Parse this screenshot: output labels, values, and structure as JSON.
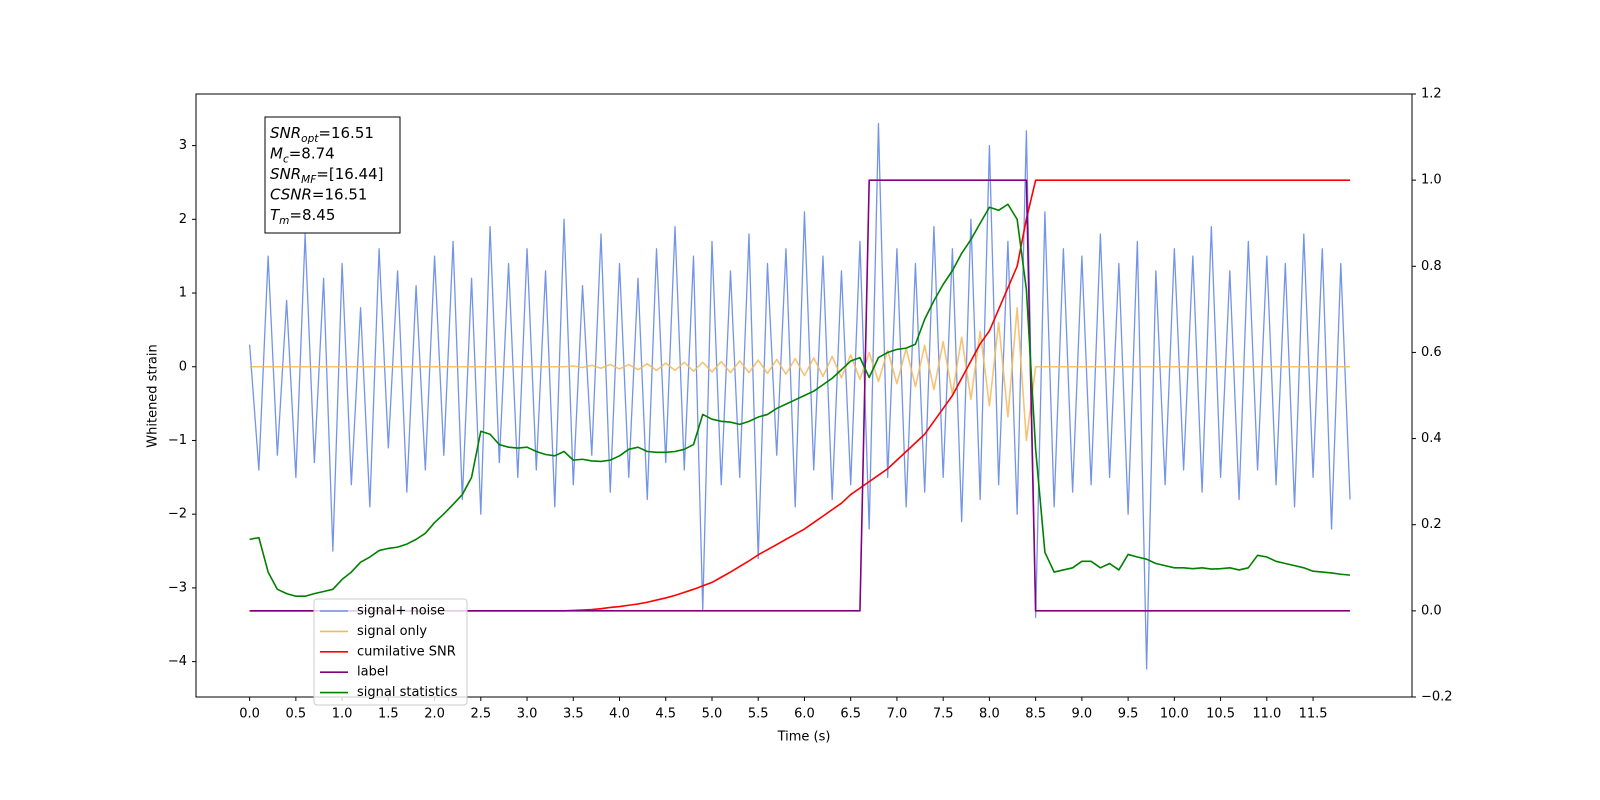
{
  "chart_data": {
    "type": "line",
    "xlabel": "Time (s)",
    "ylabel": "Whitened strain",
    "xlim": [
      -0.58,
      12.57
    ],
    "ylim": [
      -4.48,
      3.7
    ],
    "y2lim": [
      -0.2,
      1.2
    ],
    "xticks": [
      {
        "value": 0,
        "label": "0.0"
      },
      0.5,
      {
        "value": 1,
        "label": "1.0"
      },
      1.5,
      {
        "value": 2,
        "label": "2.0"
      },
      2.5,
      {
        "value": 3,
        "label": "3.0"
      },
      3.5,
      {
        "value": 4,
        "label": "4.0"
      },
      4.5,
      {
        "value": 5,
        "label": "5.0"
      },
      5.5,
      {
        "value": 6,
        "label": "6.0"
      },
      6.5,
      {
        "value": 7,
        "label": "7.0"
      },
      7.5,
      {
        "value": 8,
        "label": "8.0"
      },
      8.5,
      {
        "value": 9,
        "label": "9.0"
      },
      9.5,
      {
        "value": 10,
        "label": "10.0"
      },
      10.5,
      {
        "value": 11,
        "label": "11.0"
      },
      11.5
    ],
    "yticks": [
      {
        "value": -4,
        "label": "−4"
      },
      {
        "value": -3,
        "label": "−3"
      },
      {
        "value": -2,
        "label": "−2"
      },
      {
        "value": -1,
        "label": "−1"
      },
      0,
      1,
      2,
      3
    ],
    "y2ticks": [
      {
        "value": -0.2,
        "label": "−0.2"
      },
      {
        "value": 0,
        "label": "0.0"
      },
      0.2,
      0.4,
      0.6,
      0.8,
      {
        "value": 1,
        "label": "1.0"
      },
      1.2
    ],
    "annotations": [
      {
        "symbol": "SNR",
        "sub": "opt",
        "text": "=16.51"
      },
      {
        "symbol": "M",
        "sub": "c",
        "text": "=8.74"
      },
      {
        "symbol": "SNR",
        "sub": "MF",
        "text": "=[16.44]"
      },
      {
        "symbol": "CSNR",
        "sub": "",
        "text": "=16.51"
      },
      {
        "symbol": "T",
        "sub": "m",
        "text": "=8.45"
      }
    ],
    "x": [
      0,
      0.1,
      0.2,
      0.3,
      0.4,
      0.5,
      0.6,
      0.7,
      0.8,
      0.9,
      1,
      1.1,
      1.2,
      1.3,
      1.4,
      1.5,
      1.6,
      1.7,
      1.8,
      1.9,
      2,
      2.1,
      2.2,
      2.3,
      2.4,
      2.5,
      2.6,
      2.7,
      2.8,
      2.9,
      3,
      3.1,
      3.2,
      3.3,
      3.4,
      3.5,
      3.6,
      3.7,
      3.8,
      3.9,
      4,
      4.1,
      4.2,
      4.3,
      4.4,
      4.5,
      4.6,
      4.7,
      4.8,
      4.9,
      5,
      5.1,
      5.2,
      5.3,
      5.4,
      5.5,
      5.6,
      5.7,
      5.8,
      5.9,
      6,
      6.1,
      6.2,
      6.3,
      6.4,
      6.5,
      6.6,
      6.7,
      6.8,
      6.9,
      7,
      7.1,
      7.2,
      7.3,
      7.4,
      7.5,
      7.6,
      7.7,
      7.8,
      7.9,
      8,
      8.1,
      8.2,
      8.3,
      8.4,
      8.5,
      8.6,
      8.7,
      8.8,
      8.9,
      9,
      9.1,
      9.2,
      9.3,
      9.4,
      9.5,
      9.6,
      9.7,
      9.8,
      9.9,
      10,
      10.1,
      10.2,
      10.3,
      10.4,
      10.5,
      10.6,
      10.7,
      10.8,
      10.9,
      11,
      11.1,
      11.2,
      11.3,
      11.4,
      11.5,
      11.6,
      11.7,
      11.8,
      11.9
    ],
    "series": [
      {
        "name": "signal+ noise",
        "color": "#7394e8",
        "axis": "y",
        "values": [
          0.3,
          -1.4,
          1.5,
          -1.2,
          0.9,
          -1.5,
          1.8,
          -1.3,
          1.2,
          -2.5,
          1.4,
          -1.6,
          0.8,
          -1.9,
          1.6,
          -1.1,
          1.3,
          -1.7,
          1.1,
          -1.4,
          1.5,
          -1.2,
          1.7,
          -1.8,
          1.2,
          -2.0,
          1.9,
          -1.3,
          1.4,
          -1.5,
          1.6,
          -1.4,
          1.3,
          -1.9,
          2.0,
          -1.6,
          1.1,
          -1.2,
          1.8,
          -1.7,
          1.4,
          -1.5,
          1.2,
          -1.8,
          1.6,
          -1.3,
          1.9,
          -1.4,
          1.5,
          -3.3,
          1.7,
          -1.6,
          1.3,
          -1.5,
          1.8,
          -2.6,
          1.4,
          -1.2,
          1.6,
          -1.9,
          2.1,
          -1.4,
          1.5,
          -1.8,
          1.3,
          -1.6,
          1.7,
          -2.2,
          3.3,
          -1.5,
          1.6,
          -1.9,
          1.4,
          -1.7,
          1.9,
          -1.5,
          1.6,
          -2.1,
          2.0,
          -1.8,
          3.0,
          -1.6,
          1.7,
          -2.0,
          3.2,
          -3.4,
          2.1,
          -1.9,
          1.6,
          -1.7,
          1.5,
          -1.6,
          1.8,
          -1.5,
          1.4,
          -2.0,
          1.7,
          -4.1,
          1.3,
          -1.6,
          1.6,
          -1.4,
          1.5,
          -1.7,
          1.9,
          -1.5,
          1.3,
          -1.8,
          1.7,
          -1.4,
          1.5,
          -1.6,
          1.4,
          -1.9,
          1.8,
          -1.5,
          1.6,
          -2.2,
          1.4,
          -1.8
        ]
      },
      {
        "name": "signal only",
        "color": "#f5b85c",
        "axis": "y",
        "values": [
          0,
          0,
          0,
          0,
          0,
          0,
          0,
          0,
          0,
          0,
          0,
          0,
          0,
          0,
          0,
          0,
          0,
          0,
          0,
          0,
          0,
          0,
          0,
          0,
          0,
          0,
          0,
          0,
          0,
          0,
          0,
          0,
          0,
          0,
          0,
          0.01,
          -0.01,
          0.02,
          -0.02,
          0.03,
          -0.03,
          0.03,
          -0.04,
          0.04,
          -0.05,
          0.05,
          -0.05,
          0.06,
          -0.06,
          0.06,
          -0.07,
          0.07,
          -0.08,
          0.08,
          -0.08,
          0.09,
          -0.09,
          0.1,
          -0.1,
          0.11,
          -0.12,
          0.12,
          -0.13,
          0.14,
          -0.15,
          0.16,
          -0.17,
          0.19,
          -0.2,
          0.22,
          -0.23,
          0.25,
          -0.27,
          0.29,
          -0.31,
          0.34,
          -0.37,
          0.4,
          -0.44,
          0.48,
          -0.53,
          0.6,
          -0.68,
          0.8,
          -1.0,
          0,
          0,
          0,
          0,
          0,
          0,
          0,
          0,
          0,
          0,
          0,
          0,
          0,
          0,
          0,
          0,
          0,
          0,
          0,
          0,
          0,
          0,
          0,
          0,
          0,
          0,
          0,
          0,
          0,
          0,
          0,
          0,
          0,
          0,
          0
        ]
      },
      {
        "name": "cumilative SNR",
        "color": "#ff0000",
        "axis": "y2",
        "values": [
          0,
          0,
          0,
          0,
          0,
          0,
          0,
          0,
          0,
          0,
          0,
          0,
          0,
          0,
          0,
          0,
          0,
          0,
          0,
          0,
          0,
          0,
          0,
          0,
          0,
          0,
          0,
          0,
          0,
          0,
          0,
          0,
          0,
          0,
          0,
          0.001,
          0.002,
          0.003,
          0.005,
          0.008,
          0.01,
          0.013,
          0.016,
          0.02,
          0.025,
          0.03,
          0.036,
          0.043,
          0.05,
          0.058,
          0.066,
          0.078,
          0.09,
          0.103,
          0.116,
          0.13,
          0.142,
          0.154,
          0.166,
          0.178,
          0.19,
          0.205,
          0.22,
          0.235,
          0.25,
          0.27,
          0.285,
          0.3,
          0.315,
          0.33,
          0.35,
          0.37,
          0.39,
          0.41,
          0.44,
          0.47,
          0.5,
          0.54,
          0.58,
          0.62,
          0.65,
          0.7,
          0.75,
          0.8,
          0.91,
          1,
          1,
          1,
          1,
          1,
          1,
          1,
          1,
          1,
          1,
          1,
          1,
          1,
          1,
          1,
          1,
          1,
          1,
          1,
          1,
          1,
          1,
          1,
          1,
          1,
          1,
          1,
          1,
          1,
          1,
          1,
          1,
          1,
          1,
          1
        ]
      },
      {
        "name": "label",
        "color": "#800080",
        "axis": "y2",
        "values": [
          0,
          0,
          0,
          0,
          0,
          0,
          0,
          0,
          0,
          0,
          0,
          0,
          0,
          0,
          0,
          0,
          0,
          0,
          0,
          0,
          0,
          0,
          0,
          0,
          0,
          0,
          0,
          0,
          0,
          0,
          0,
          0,
          0,
          0,
          0,
          0,
          0,
          0,
          0,
          0,
          0,
          0,
          0,
          0,
          0,
          0,
          0,
          0,
          0,
          0,
          0,
          0,
          0,
          0,
          0,
          0,
          0,
          0,
          0,
          0,
          0,
          0,
          0,
          0,
          0,
          0,
          0,
          1,
          1,
          1,
          1,
          1,
          1,
          1,
          1,
          1,
          1,
          1,
          1,
          1,
          1,
          1,
          1,
          1,
          1,
          0,
          0,
          0,
          0,
          0,
          0,
          0,
          0,
          0,
          0,
          0,
          0,
          0,
          0,
          0,
          0,
          0,
          0,
          0,
          0,
          0,
          0,
          0,
          0,
          0,
          0,
          0,
          0,
          0,
          0,
          0,
          0,
          0,
          0,
          0
        ]
      },
      {
        "name": "signal statistics",
        "color": "#008000",
        "axis": "y2",
        "values": [
          0.166,
          0.17,
          0.09,
          0.05,
          0.04,
          0.034,
          0.034,
          0.04,
          0.045,
          0.05,
          0.073,
          0.09,
          0.113,
          0.125,
          0.14,
          0.145,
          0.148,
          0.155,
          0.166,
          0.18,
          0.205,
          0.225,
          0.247,
          0.27,
          0.31,
          0.417,
          0.41,
          0.386,
          0.38,
          0.378,
          0.38,
          0.37,
          0.363,
          0.36,
          0.37,
          0.35,
          0.352,
          0.348,
          0.347,
          0.35,
          0.36,
          0.375,
          0.38,
          0.37,
          0.368,
          0.368,
          0.37,
          0.375,
          0.386,
          0.456,
          0.445,
          0.44,
          0.438,
          0.433,
          0.44,
          0.45,
          0.456,
          0.47,
          0.48,
          0.49,
          0.5,
          0.51,
          0.525,
          0.54,
          0.56,
          0.58,
          0.588,
          0.542,
          0.588,
          0.6,
          0.607,
          0.61,
          0.619,
          0.677,
          0.72,
          0.758,
          0.79,
          0.83,
          0.862,
          0.9,
          0.937,
          0.93,
          0.944,
          0.909,
          0.746,
          0.375,
          0.136,
          0.09,
          0.095,
          0.1,
          0.115,
          0.115,
          0.1,
          0.11,
          0.095,
          0.131,
          0.125,
          0.12,
          0.11,
          0.105,
          0.1,
          0.1,
          0.098,
          0.1,
          0.097,
          0.098,
          0.1,
          0.095,
          0.1,
          0.129,
          0.125,
          0.115,
          0.11,
          0.105,
          0.1,
          0.092,
          0.09,
          0.088,
          0.085,
          0.083
        ]
      }
    ]
  }
}
